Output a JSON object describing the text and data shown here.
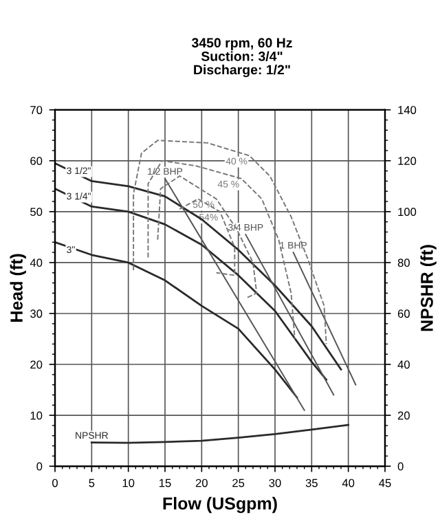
{
  "chart_data": {
    "type": "line",
    "title": "3450 rpm, 60 Hz",
    "subtitle": "Suction: 3/4\"\nDischarge: 1/2\"",
    "xlabel": "Flow (USgpm)",
    "ylabel": "Head (ft)",
    "y2label": "NPSHR (ft)",
    "xlim": [
      0,
      45
    ],
    "xticks": [
      0,
      5,
      10,
      15,
      20,
      25,
      30,
      35,
      40,
      45
    ],
    "ylim": [
      0,
      70
    ],
    "yticks": [
      0,
      10,
      20,
      30,
      40,
      50,
      60,
      70
    ],
    "y2lim": [
      0,
      140
    ],
    "y2ticks": [
      0,
      20,
      40,
      60,
      80,
      100,
      120,
      140
    ],
    "grid": true,
    "legend": false,
    "marker": "none",
    "series": [
      {
        "name": "3 1/2\"",
        "color": "#2a2a2a",
        "line_style": "solid",
        "x": [
          0,
          5,
          10,
          15,
          20,
          25,
          30,
          35,
          39
        ],
        "values": [
          59.5,
          56,
          55,
          53,
          48.5,
          42.5,
          35.5,
          27.5,
          19
        ]
      },
      {
        "name": "3 1/4\"",
        "color": "#2a2a2a",
        "line_style": "solid",
        "x": [
          0,
          5,
          10,
          15,
          20,
          25,
          30,
          35,
          37
        ],
        "values": [
          54.5,
          51,
          50,
          47.5,
          43.5,
          37.5,
          30.5,
          20.5,
          17
        ]
      },
      {
        "name": "3\"",
        "color": "#2a2a2a",
        "line_style": "solid",
        "x": [
          0,
          5,
          10,
          15,
          20,
          25,
          30,
          33
        ],
        "values": [
          44,
          41.5,
          40,
          36.5,
          31.5,
          27,
          19,
          13.5
        ]
      },
      {
        "name": "1/2 BHP",
        "color": "#555555",
        "line_style": "solid",
        "x": [
          15,
          34
        ],
        "values": [
          56.5,
          11
        ]
      },
      {
        "name": "3/4 BHP",
        "color": "#555555",
        "line_style": "solid",
        "x": [
          26,
          38
        ],
        "values": [
          45.5,
          14
        ]
      },
      {
        "name": "1 BHP",
        "color": "#555555",
        "line_style": "solid",
        "x": [
          32.5,
          41
        ],
        "values": [
          42,
          16
        ]
      },
      {
        "name": "40 %",
        "color": "#777777",
        "line_style": "dashed",
        "x": [
          10.7,
          10.7,
          11.8,
          14,
          20.8,
          26.5,
          29.3,
          32.2,
          34.4,
          36.7,
          37
        ],
        "values": [
          38.5,
          53.5,
          61.5,
          64,
          63.5,
          61,
          57,
          49,
          41,
          31.5,
          24
        ]
      },
      {
        "name": "45 %",
        "color": "#777777",
        "line_style": "dashed",
        "x": [
          12.7,
          12.7,
          14.6,
          19.2,
          25.4,
          28.2,
          30.5,
          32.2,
          32.7
        ],
        "values": [
          41,
          55.5,
          60,
          59,
          56.5,
          52.5,
          44.5,
          34,
          25
        ]
      },
      {
        "name": "50 %",
        "color": "#777777",
        "line_style": "dashed",
        "x": [
          14,
          14.4,
          17,
          22,
          24.8,
          27,
          27.5,
          26
        ],
        "values": [
          44.5,
          54.5,
          57,
          52.5,
          46.5,
          40,
          34,
          33
        ]
      },
      {
        "name": "54%",
        "color": "#777777",
        "line_style": "dashed",
        "x": [
          17,
          19.5,
          22.5,
          24.5,
          24.5,
          22
        ],
        "values": [
          50.5,
          52.5,
          50,
          43,
          37.5,
          38
        ]
      },
      {
        "name": "NPSHR",
        "color": "#2a2a2a",
        "line_style": "solid",
        "axis": "y2",
        "x": [
          5,
          10,
          15,
          20,
          25,
          30,
          35,
          40
        ],
        "values": [
          9.3,
          9.2,
          9.5,
          10,
          11.2,
          12.6,
          14.4,
          16.2
        ]
      }
    ]
  }
}
